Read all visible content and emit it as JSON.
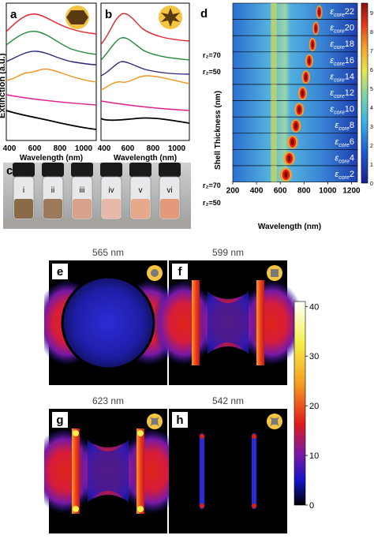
{
  "colors": {
    "red": "#e3242b",
    "green": "#1f8a3a",
    "navy": "#2b2a7a",
    "orange": "#f0931f",
    "magenta": "#e0218a",
    "black": "#000000",
    "gold": "#f5c542",
    "core": "#5a3a10"
  },
  "icons": [
    "sphere-core-icon",
    "star-core-icon",
    "disk-core-icon",
    "square-core-icon",
    "concave-square-core-icon"
  ],
  "panel_a": {
    "letter": "a",
    "ylabel": "Extinction (a.u.)",
    "xlabel": "Wavelength (nm)",
    "xticks": [
      "400",
      "600",
      "800",
      "1000"
    ]
  },
  "panel_b": {
    "letter": "b",
    "xlabel": "Wavelength (nm)",
    "xticks": [
      "400",
      "600",
      "800",
      "1000"
    ]
  },
  "panel_c": {
    "letter": "c",
    "vials": [
      "i",
      "ii",
      "iii",
      "iv",
      "v",
      "vi"
    ]
  },
  "panel_d": {
    "letter": "d",
    "ylabel": "Shell Thickness (nm)",
    "xlabel": "Wavelength (nm)",
    "xticks": [
      "200",
      "400",
      "600",
      "800",
      "1000",
      "1200"
    ],
    "r2_labels": [
      "r₂=70",
      "r₂=50",
      "r₂=70",
      "r₂=50"
    ],
    "strip_labels": [
      "22",
      "20",
      "18",
      "16",
      "14",
      "12",
      "10",
      "8",
      "6",
      "4",
      "2"
    ],
    "eps_symbol": "ε",
    "eps_sub": "core",
    "colorbar_ticks": [
      "9",
      "8",
      "7",
      "6",
      "5",
      "4",
      "3",
      "2",
      "1",
      "0"
    ]
  },
  "field_maps": [
    {
      "letter": "e",
      "wavelength": "565 nm",
      "icon": "disk-core-icon"
    },
    {
      "letter": "f",
      "wavelength": "599 nm",
      "icon": "square-core-icon"
    },
    {
      "letter": "g",
      "wavelength": "623 nm",
      "icon": "concave-square-core-icon"
    },
    {
      "letter": "h",
      "wavelength": "542 nm",
      "icon": "concave-square-core-icon"
    }
  ],
  "field_colorbar_ticks": [
    "40",
    "30",
    "20",
    "10",
    "0"
  ],
  "chart_data": [
    {
      "type": "line",
      "panel": "a",
      "xlim": [
        400,
        1100
      ],
      "y_axis_ticks": "none",
      "series_count": 6
    },
    {
      "type": "line",
      "panel": "b",
      "xlim": [
        400,
        1100
      ],
      "y_axis_ticks": "none",
      "series_count": 6
    },
    {
      "type": "heatmap",
      "panel": "d",
      "xlim": [
        200,
        1250
      ],
      "x_ticks": [
        200,
        400,
        600,
        800,
        1000,
        1200
      ],
      "colorbar_range": [
        0,
        9.5
      ],
      "epsilon_core": [
        22,
        20,
        18,
        16,
        14,
        12,
        10,
        8,
        6,
        4,
        2
      ]
    },
    {
      "type": "heatmap",
      "panels": [
        "e",
        "f",
        "g",
        "h"
      ],
      "colorbar_range": [
        0,
        40
      ]
    }
  ]
}
